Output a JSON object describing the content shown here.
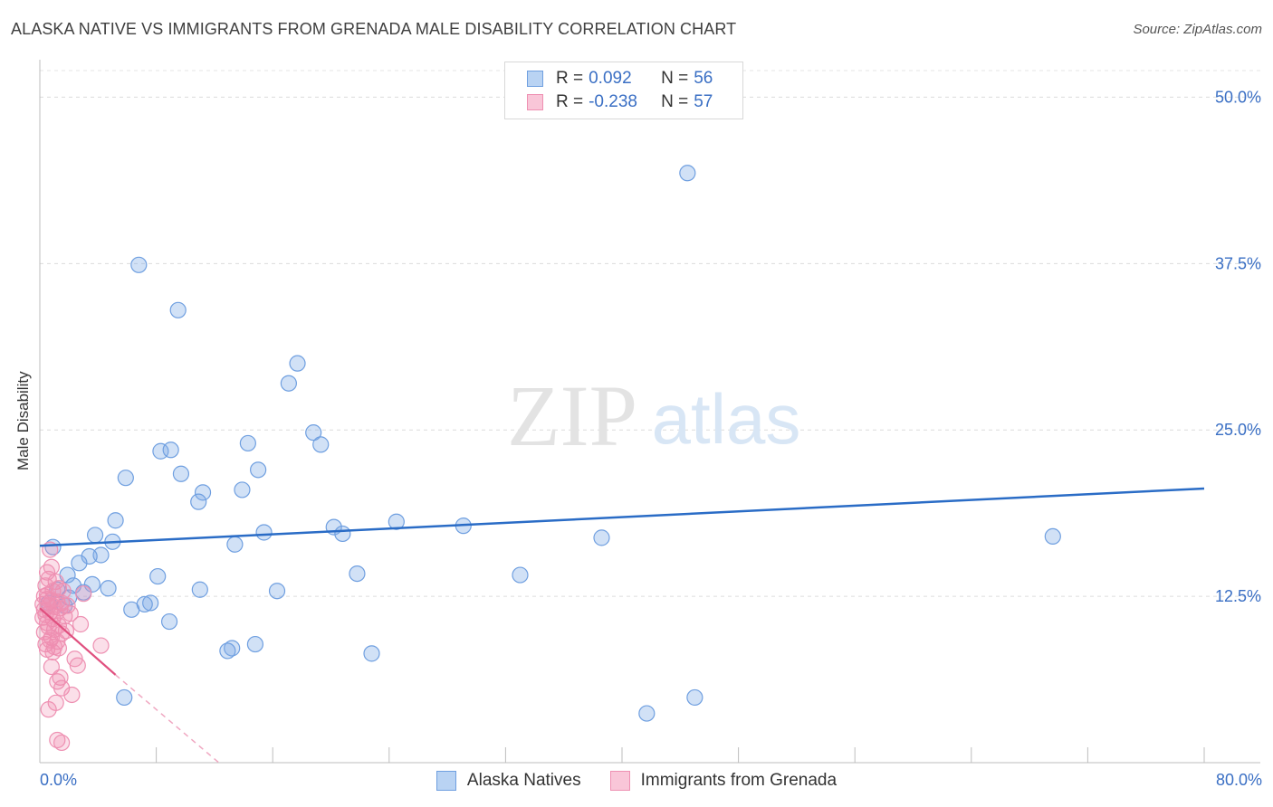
{
  "title": "ALASKA NATIVE VS IMMIGRANTS FROM GRENADA MALE DISABILITY CORRELATION CHART",
  "source": "Source: ZipAtlas.com",
  "watermark": {
    "zip": "ZIP",
    "atlas": "atlas"
  },
  "legend": {
    "rows": [
      {
        "r_label": "R =",
        "r_value": "0.092",
        "n_label": "N =",
        "n_value": "56"
      },
      {
        "r_label": "R =",
        "r_value": "-0.238",
        "n_label": "N =",
        "n_value": "57"
      }
    ]
  },
  "colors": {
    "blue": "#7aaae6",
    "blue_line": "#2a6cc6",
    "pink": "#f08cb0",
    "pink_line": "#e0507f",
    "axis_text": "#3a6fc4"
  },
  "chart_data": {
    "type": "scatter",
    "title": "ALASKA NATIVE VS IMMIGRANTS FROM GRENADA MALE DISABILITY CORRELATION CHART",
    "xlabel": "",
    "ylabel": "Male Disability",
    "xlim": [
      0,
      80
    ],
    "ylim": [
      0,
      52
    ],
    "x_tick_labels": [
      "0.0%",
      "80.0%"
    ],
    "y_ticks": [
      12.5,
      25.0,
      37.5,
      50.0
    ],
    "y_tick_labels": [
      "12.5%",
      "25.0%",
      "37.5%",
      "50.0%"
    ],
    "series": [
      {
        "name": "Alaska Natives",
        "trend": {
          "x0": 0,
          "y0": 16.3,
          "x1": 80,
          "y1": 20.6
        },
        "points": [
          [
            44.5,
            44.3
          ],
          [
            6.8,
            37.4
          ],
          [
            9.5,
            34.0
          ],
          [
            17.7,
            30.0
          ],
          [
            17.1,
            28.5
          ],
          [
            18.8,
            24.8
          ],
          [
            19.3,
            23.9
          ],
          [
            14.3,
            24.0
          ],
          [
            8.3,
            23.4
          ],
          [
            9.0,
            23.5
          ],
          [
            15.0,
            22.0
          ],
          [
            9.7,
            21.7
          ],
          [
            5.9,
            21.4
          ],
          [
            11.2,
            20.3
          ],
          [
            13.9,
            20.5
          ],
          [
            10.9,
            19.6
          ],
          [
            5.2,
            18.2
          ],
          [
            24.5,
            18.1
          ],
          [
            29.1,
            17.8
          ],
          [
            20.2,
            17.7
          ],
          [
            15.4,
            17.3
          ],
          [
            20.8,
            17.2
          ],
          [
            3.8,
            17.1
          ],
          [
            38.6,
            16.9
          ],
          [
            69.6,
            17.0
          ],
          [
            5.0,
            16.6
          ],
          [
            13.4,
            16.4
          ],
          [
            0.9,
            16.2
          ],
          [
            4.2,
            15.6
          ],
          [
            3.4,
            15.5
          ],
          [
            2.7,
            15.0
          ],
          [
            21.8,
            14.2
          ],
          [
            33.0,
            14.1
          ],
          [
            1.9,
            14.1
          ],
          [
            8.1,
            14.0
          ],
          [
            3.6,
            13.4
          ],
          [
            2.3,
            13.3
          ],
          [
            4.7,
            13.1
          ],
          [
            11.0,
            13.0
          ],
          [
            16.3,
            12.9
          ],
          [
            3.0,
            12.8
          ],
          [
            7.6,
            12.0
          ],
          [
            7.2,
            11.9
          ],
          [
            1.7,
            11.8
          ],
          [
            6.3,
            11.5
          ],
          [
            8.9,
            10.6
          ],
          [
            14.8,
            8.9
          ],
          [
            13.2,
            8.6
          ],
          [
            12.9,
            8.4
          ],
          [
            22.8,
            8.2
          ],
          [
            5.8,
            4.9
          ],
          [
            45.0,
            4.9
          ],
          [
            41.7,
            3.7
          ],
          [
            1.2,
            13.0
          ],
          [
            2.0,
            12.4
          ],
          [
            0.6,
            12.0
          ]
        ]
      },
      {
        "name": "Immigrants from Grenada",
        "trend_solid": {
          "x0": 0,
          "y0": 11.6,
          "x1": 5.2,
          "y1": 6.6
        },
        "trend_dashed": {
          "x0": 5.2,
          "y0": 6.6,
          "x1": 12.3,
          "y1": 0.0
        },
        "points": [
          [
            0.7,
            16.0
          ],
          [
            0.8,
            14.7
          ],
          [
            0.5,
            14.3
          ],
          [
            0.6,
            13.8
          ],
          [
            1.1,
            13.6
          ],
          [
            0.4,
            13.3
          ],
          [
            1.3,
            13.1
          ],
          [
            0.9,
            12.9
          ],
          [
            1.6,
            12.9
          ],
          [
            3.0,
            12.7
          ],
          [
            0.3,
            12.5
          ],
          [
            0.5,
            12.3
          ],
          [
            0.8,
            12.2
          ],
          [
            1.2,
            12.1
          ],
          [
            1.5,
            12.0
          ],
          [
            0.2,
            11.9
          ],
          [
            0.6,
            11.8
          ],
          [
            1.0,
            11.7
          ],
          [
            1.4,
            11.6
          ],
          [
            1.9,
            11.8
          ],
          [
            0.3,
            11.5
          ],
          [
            0.7,
            11.3
          ],
          [
            1.1,
            11.2
          ],
          [
            0.4,
            11.1
          ],
          [
            1.7,
            11.0
          ],
          [
            2.1,
            11.2
          ],
          [
            0.2,
            10.9
          ],
          [
            0.9,
            10.8
          ],
          [
            0.5,
            10.5
          ],
          [
            1.3,
            10.3
          ],
          [
            2.8,
            10.4
          ],
          [
            0.6,
            10.2
          ],
          [
            1.0,
            10.0
          ],
          [
            0.3,
            9.8
          ],
          [
            1.5,
            9.7
          ],
          [
            1.8,
            9.9
          ],
          [
            0.8,
            9.4
          ],
          [
            1.2,
            9.1
          ],
          [
            0.4,
            8.9
          ],
          [
            1.0,
            8.7
          ],
          [
            0.5,
            8.5
          ],
          [
            1.3,
            8.6
          ],
          [
            4.2,
            8.8
          ],
          [
            0.9,
            8.3
          ],
          [
            2.4,
            7.8
          ],
          [
            2.6,
            7.3
          ],
          [
            0.8,
            7.2
          ],
          [
            1.4,
            6.4
          ],
          [
            1.2,
            6.1
          ],
          [
            1.5,
            5.6
          ],
          [
            2.2,
            5.1
          ],
          [
            1.1,
            4.5
          ],
          [
            0.6,
            4.0
          ],
          [
            1.2,
            1.7
          ],
          [
            1.5,
            1.5
          ],
          [
            0.5,
            12.6
          ],
          [
            0.7,
            9.2
          ]
        ]
      }
    ]
  }
}
